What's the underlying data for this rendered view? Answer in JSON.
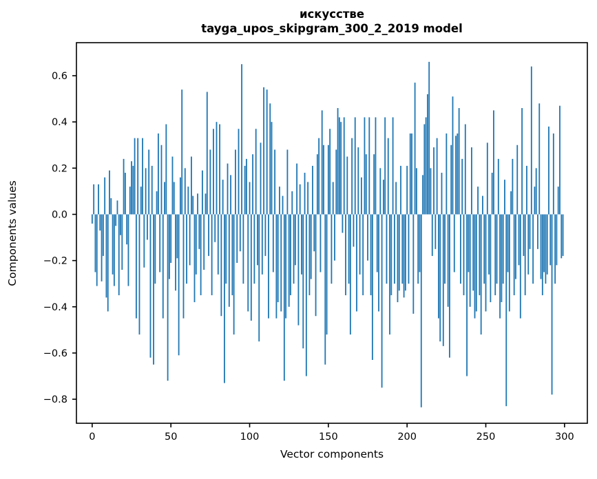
{
  "title": {
    "line1": "искусстве",
    "line2": "tayga_upos_skipgram_300_2_2019 model"
  },
  "chart_data": {
    "type": "bar",
    "title": "искусстве — tayga_upos_skipgram_300_2_2019 model",
    "xlabel": "Vector components",
    "ylabel": "Components values",
    "grid": false,
    "legend": "none",
    "bar_color": "#1f77b4",
    "bar_width": 0.8,
    "xlim": [
      -10,
      314.5
    ],
    "ylim": [
      -0.904,
      0.743
    ],
    "x_tick_values": [
      0,
      50,
      100,
      150,
      200,
      250,
      300
    ],
    "x_tick_labels": [
      "0",
      "50",
      "100",
      "150",
      "200",
      "250",
      "300"
    ],
    "y_tick_values": [
      0.6,
      0.4,
      0.2,
      0.0,
      -0.2,
      -0.4,
      -0.6,
      -0.8
    ],
    "y_tick_labels": [
      "0.6",
      "0.4",
      "0.2",
      "0.0",
      "−0.2",
      "−0.4",
      "−0.6",
      "−0.8"
    ],
    "x": "component index 0..299",
    "values": [
      -0.04,
      0.13,
      -0.25,
      -0.31,
      0.13,
      -0.07,
      -0.29,
      -0.18,
      0.16,
      -0.36,
      -0.42,
      0.19,
      0.07,
      -0.26,
      -0.31,
      -0.05,
      0.06,
      -0.35,
      -0.09,
      -0.24,
      0.24,
      0.18,
      -0.13,
      -0.31,
      0.12,
      0.23,
      0.21,
      0.33,
      -0.45,
      0.33,
      -0.52,
      0.12,
      0.33,
      -0.23,
      0.2,
      -0.11,
      0.28,
      -0.62,
      0.21,
      -0.65,
      -0.3,
      0.1,
      0.35,
      -0.25,
      0.3,
      -0.45,
      0.14,
      0.39,
      -0.72,
      -0.28,
      -0.21,
      0.25,
      0.14,
      -0.33,
      -0.19,
      -0.61,
      0.16,
      0.54,
      -0.45,
      0.2,
      -0.3,
      0.12,
      -0.22,
      0.25,
      0.08,
      -0.38,
      -0.26,
      0.09,
      -0.15,
      -0.35,
      0.19,
      -0.24,
      0.09,
      0.53,
      -0.18,
      0.28,
      -0.35,
      0.37,
      -0.12,
      0.4,
      -0.26,
      0.39,
      -0.44,
      0.15,
      -0.73,
      -0.3,
      0.22,
      -0.4,
      0.17,
      -0.35,
      -0.52,
      0.28,
      -0.21,
      0.37,
      -0.16,
      0.65,
      -0.3,
      0.21,
      0.24,
      -0.42,
      0.14,
      -0.46,
      0.26,
      -0.3,
      0.37,
      -0.22,
      -0.55,
      0.31,
      -0.26,
      0.55,
      -0.18,
      0.54,
      -0.45,
      0.48,
      0.4,
      -0.25,
      0.28,
      -0.45,
      -0.38,
      0.12,
      -0.42,
      0.08,
      -0.72,
      -0.45,
      0.28,
      -0.4,
      -0.35,
      0.1,
      -0.3,
      -0.22,
      0.22,
      -0.48,
      0.13,
      -0.26,
      -0.58,
      0.18,
      -0.7,
      0.14,
      -0.35,
      -0.28,
      0.21,
      -0.16,
      -0.44,
      0.26,
      0.33,
      -0.25,
      0.45,
      0.3,
      -0.65,
      -0.52,
      0.3,
      0.37,
      -0.3,
      0.14,
      -0.2,
      0.28,
      0.46,
      0.42,
      0.4,
      -0.08,
      0.42,
      -0.35,
      0.25,
      -0.3,
      -0.52,
      0.33,
      -0.14,
      0.42,
      -0.42,
      0.29,
      -0.26,
      0.16,
      -0.35,
      0.42,
      0.26,
      -0.2,
      0.42,
      -0.35,
      -0.63,
      0.26,
      0.42,
      -0.25,
      -0.42,
      0.2,
      -0.75,
      0.15,
      0.42,
      -0.3,
      0.33,
      -0.52,
      -0.35,
      0.42,
      -0.3,
      0.14,
      -0.38,
      -0.33,
      0.21,
      -0.3,
      -0.36,
      -0.33,
      0.21,
      -0.3,
      0.35,
      0.35,
      -0.43,
      0.57,
      0.2,
      -0.3,
      -0.25,
      -0.835,
      0.17,
      0.39,
      0.42,
      0.52,
      0.66,
      0.2,
      -0.18,
      0.29,
      -0.15,
      0.33,
      -0.45,
      -0.55,
      0.18,
      -0.57,
      -0.3,
      0.35,
      -0.4,
      -0.62,
      0.3,
      0.51,
      -0.25,
      0.34,
      0.35,
      0.46,
      -0.3,
      0.24,
      -0.35,
      0.39,
      -0.7,
      -0.25,
      -0.4,
      0.29,
      -0.33,
      -0.45,
      -0.42,
      0.12,
      -0.35,
      -0.52,
      0.08,
      -0.3,
      -0.42,
      0.31,
      -0.26,
      -0.38,
      0.18,
      0.45,
      -0.35,
      -0.3,
      0.24,
      -0.45,
      -0.38,
      -0.3,
      0.15,
      -0.83,
      -0.25,
      -0.42,
      0.1,
      0.24,
      -0.35,
      -0.28,
      0.3,
      -0.22,
      -0.45,
      0.46,
      -0.18,
      -0.35,
      0.21,
      -0.26,
      -0.15,
      0.64,
      -0.3,
      0.12,
      0.2,
      -0.15,
      0.48,
      -0.28,
      -0.35,
      -0.25,
      -0.3,
      -0.26,
      0.38,
      -0.22,
      -0.78,
      0.35,
      -0.3,
      -0.22,
      0.12,
      0.47,
      -0.19,
      -0.18
    ]
  },
  "style": {
    "spine_color": "#000000",
    "text_color": "#000000",
    "background": "#ffffff"
  }
}
